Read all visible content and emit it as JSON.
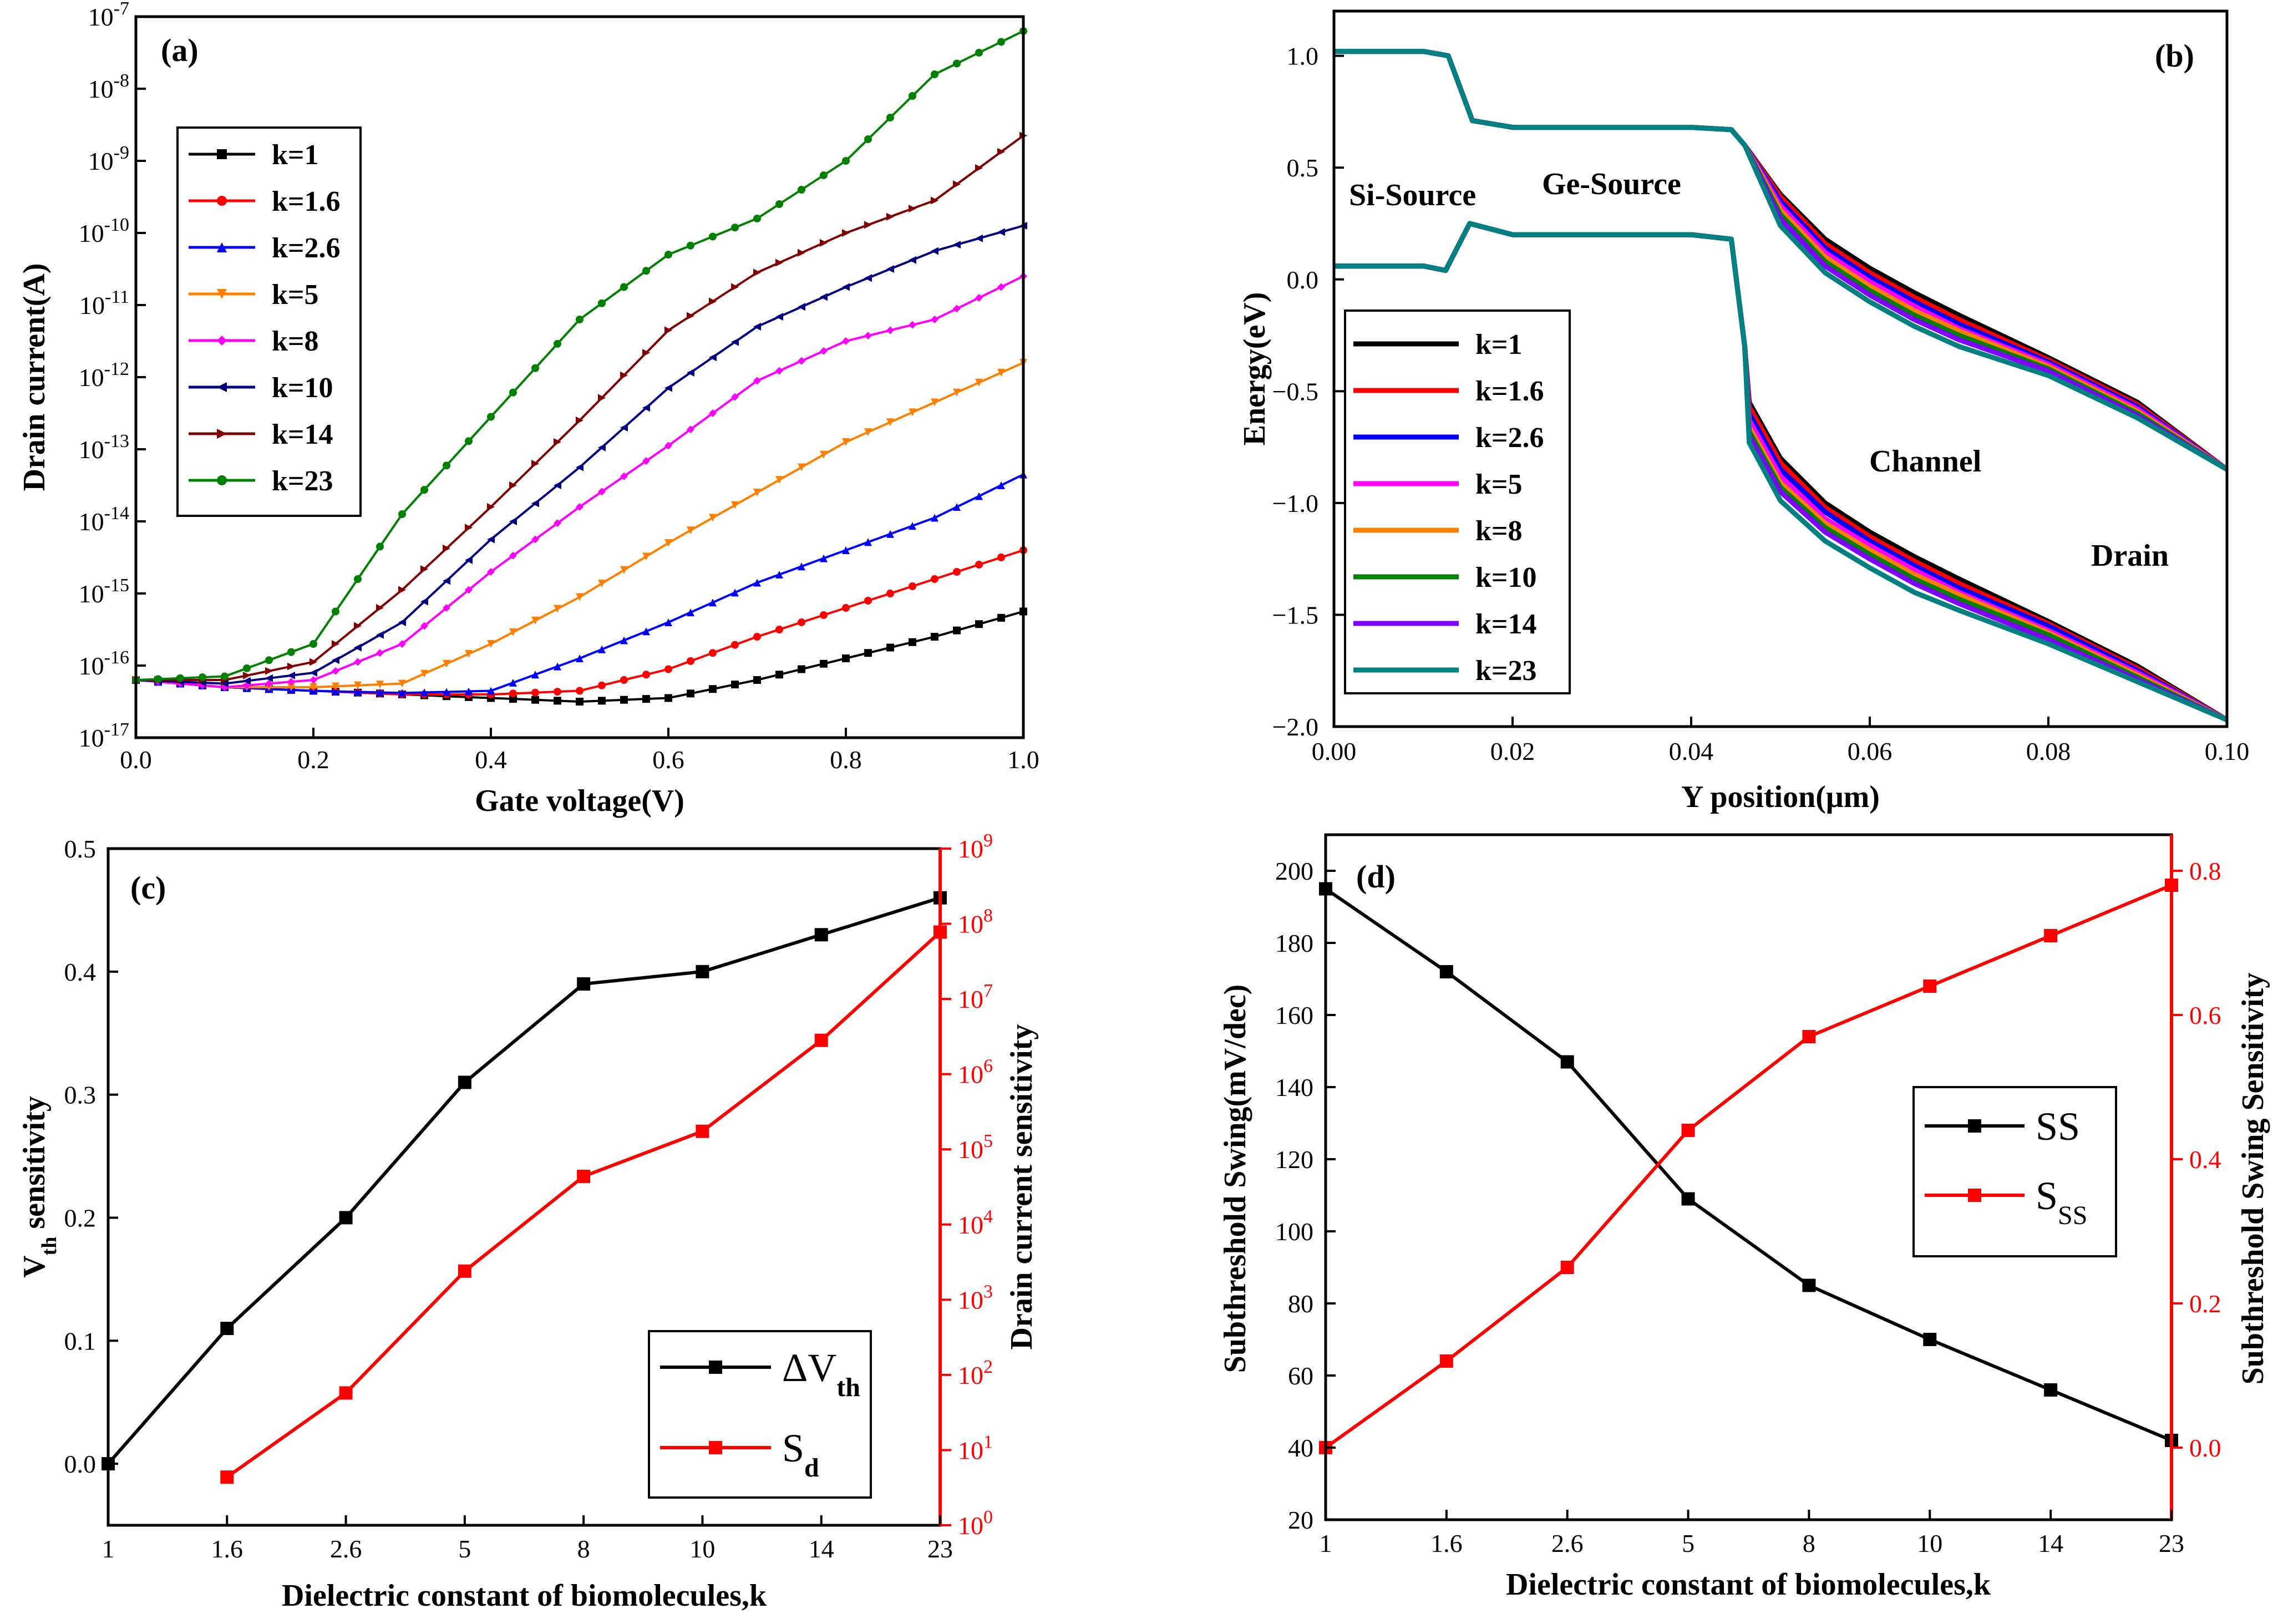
{
  "chart_data": [
    {
      "type": "line",
      "panel_label": "(a)",
      "xlabel": "Gate voltage(V)",
      "ylabel": "Drain current(A)",
      "xlim": [
        0,
        1.0
      ],
      "ylim_log10": [
        -17,
        -7
      ],
      "yscale": "log",
      "xticks": [
        "0.0",
        "0.2",
        "0.4",
        "0.6",
        "0.8",
        "1.0"
      ],
      "yticks": [
        {
          "base": "10",
          "exp": "-17"
        },
        {
          "base": "10",
          "exp": "-16"
        },
        {
          "base": "10",
          "exp": "-15"
        },
        {
          "base": "10",
          "exp": "-14"
        },
        {
          "base": "10",
          "exp": "-13"
        },
        {
          "base": "10",
          "exp": "-12"
        },
        {
          "base": "10",
          "exp": "-11"
        },
        {
          "base": "10",
          "exp": "-10"
        },
        {
          "base": "10",
          "exp": "-9"
        },
        {
          "base": "10",
          "exp": "-8"
        },
        {
          "base": "10",
          "exp": "-7"
        }
      ],
      "x": [
        0.0,
        0.1,
        0.2,
        0.3,
        0.4,
        0.5,
        0.6,
        0.7,
        0.8,
        0.9,
        1.0
      ],
      "series": [
        {
          "name": "k=1",
          "color": "#000000",
          "marker": "square",
          "log10_values": [
            -16.2,
            -16.3,
            -16.35,
            -16.4,
            -16.45,
            -16.5,
            -16.45,
            -16.2,
            -15.9,
            -15.6,
            -15.25
          ]
        },
        {
          "name": "k=1.6",
          "color": "#ff0000",
          "marker": "circle",
          "log10_values": [
            -16.2,
            -16.3,
            -16.35,
            -16.4,
            -16.4,
            -16.35,
            -16.05,
            -15.6,
            -15.2,
            -14.8,
            -14.4
          ]
        },
        {
          "name": "k=2.6",
          "color": "#0000ff",
          "marker": "triangle-up",
          "log10_values": [
            -16.2,
            -16.3,
            -16.35,
            -16.38,
            -16.35,
            -15.9,
            -15.4,
            -14.85,
            -14.4,
            -13.95,
            -13.35
          ]
        },
        {
          "name": "k=5",
          "color": "#ff8000",
          "marker": "triangle-down",
          "log10_values": [
            -16.2,
            -16.3,
            -16.3,
            -16.25,
            -15.7,
            -15.05,
            -14.3,
            -13.6,
            -12.9,
            -12.35,
            -11.8
          ]
        },
        {
          "name": "k=8",
          "color": "#ff00ff",
          "marker": "diamond",
          "log10_values": [
            -16.2,
            -16.3,
            -16.2,
            -15.7,
            -14.7,
            -13.8,
            -12.95,
            -12.05,
            -11.5,
            -11.2,
            -10.6
          ]
        },
        {
          "name": "k=10",
          "color": "#000080",
          "marker": "triangle-left",
          "log10_values": [
            -16.2,
            -16.25,
            -16.1,
            -15.4,
            -14.25,
            -13.25,
            -12.15,
            -11.3,
            -10.75,
            -10.25,
            -9.9
          ]
        },
        {
          "name": "k=14",
          "color": "#800000",
          "marker": "triangle-right",
          "log10_values": [
            -16.2,
            -16.2,
            -15.95,
            -14.95,
            -13.8,
            -12.6,
            -11.35,
            -10.55,
            -10.0,
            -9.55,
            -8.65
          ]
        },
        {
          "name": "k=23",
          "color": "#008000",
          "marker": "circle",
          "log10_values": [
            -16.2,
            -16.15,
            -15.7,
            -13.9,
            -12.55,
            -11.2,
            -10.3,
            -9.8,
            -9.0,
            -7.8,
            -7.2
          ]
        }
      ]
    },
    {
      "type": "line",
      "panel_label": "(b)",
      "xlabel": "Y position(μm)",
      "ylabel": "Energy(eV)",
      "xlim": [
        0,
        0.1
      ],
      "ylim": [
        -2.0,
        1.2
      ],
      "xticks": [
        "0.00",
        "0.02",
        "0.04",
        "0.06",
        "0.08",
        "0.10"
      ],
      "yticks": [
        "-2.0",
        "-1.5",
        "-1.0",
        "-0.5",
        "0.0",
        "0.5",
        "1.0"
      ],
      "annotations": [
        "Si-Source",
        "Ge-Source",
        "Channel",
        "Drain"
      ],
      "conduction_band_common": {
        "x": [
          0.0,
          0.01,
          0.0128,
          0.0155,
          0.02,
          0.03,
          0.04,
          0.0445,
          0.046
        ],
        "y": [
          1.02,
          1.02,
          1.0,
          0.71,
          0.68,
          0.68,
          0.68,
          0.67,
          0.6
        ]
      },
      "valence_band_common": {
        "x": [
          0.0,
          0.01,
          0.0125,
          0.0152,
          0.02,
          0.03,
          0.04,
          0.0445,
          0.046
        ],
        "y": [
          0.06,
          0.06,
          0.04,
          0.25,
          0.2,
          0.2,
          0.2,
          0.18,
          -0.3
        ]
      },
      "series": [
        {
          "name": "k=1",
          "color": "#000000",
          "cb_x": [
            0.046,
            0.05,
            0.055,
            0.06,
            0.065,
            0.07,
            0.08,
            0.09,
            0.1
          ],
          "cb_y": [
            0.6,
            0.38,
            0.18,
            0.05,
            -0.06,
            -0.16,
            -0.35,
            -0.55,
            -0.85
          ],
          "vb_x": [
            0.0465,
            0.05,
            0.055,
            0.06,
            0.065,
            0.07,
            0.08,
            0.09,
            0.1
          ],
          "vb_y": [
            -0.55,
            -0.8,
            -1.0,
            -1.13,
            -1.24,
            -1.34,
            -1.53,
            -1.73,
            -1.97
          ]
        },
        {
          "name": "k=1.6",
          "color": "#ff0000",
          "cb_x": [
            0.046,
            0.05,
            0.055,
            0.06,
            0.065,
            0.07,
            0.08,
            0.09,
            0.1
          ],
          "cb_y": [
            0.6,
            0.37,
            0.16,
            0.03,
            -0.08,
            -0.18,
            -0.36,
            -0.56,
            -0.85
          ],
          "vb_x": [
            0.0465,
            0.05,
            0.055,
            0.06,
            0.065,
            0.07,
            0.08,
            0.09,
            0.1
          ],
          "vb_y": [
            -0.57,
            -0.82,
            -1.02,
            -1.15,
            -1.26,
            -1.36,
            -1.54,
            -1.74,
            -1.97
          ]
        },
        {
          "name": "k=2.6",
          "color": "#0000ff",
          "cb_x": [
            0.046,
            0.05,
            0.055,
            0.06,
            0.065,
            0.07,
            0.08,
            0.09,
            0.1
          ],
          "cb_y": [
            0.6,
            0.35,
            0.14,
            0.01,
            -0.1,
            -0.2,
            -0.37,
            -0.57,
            -0.85
          ],
          "vb_x": [
            0.0465,
            0.05,
            0.055,
            0.06,
            0.065,
            0.07,
            0.08,
            0.09,
            0.1
          ],
          "vb_y": [
            -0.6,
            -0.85,
            -1.04,
            -1.17,
            -1.28,
            -1.38,
            -1.55,
            -1.75,
            -1.97
          ]
        },
        {
          "name": "k=5",
          "color": "#ff00ff",
          "cb_x": [
            0.046,
            0.05,
            0.055,
            0.06,
            0.065,
            0.07,
            0.08,
            0.09,
            0.1
          ],
          "cb_y": [
            0.6,
            0.33,
            0.12,
            -0.01,
            -0.12,
            -0.22,
            -0.38,
            -0.58,
            -0.85
          ],
          "vb_x": [
            0.0465,
            0.05,
            0.055,
            0.06,
            0.065,
            0.07,
            0.08,
            0.09,
            0.1
          ],
          "vb_y": [
            -0.63,
            -0.88,
            -1.07,
            -1.19,
            -1.3,
            -1.4,
            -1.57,
            -1.76,
            -1.97
          ]
        },
        {
          "name": "k=8",
          "color": "#ff8000",
          "cb_x": [
            0.046,
            0.05,
            0.055,
            0.06,
            0.065,
            0.07,
            0.08,
            0.09,
            0.1
          ],
          "cb_y": [
            0.6,
            0.31,
            0.1,
            -0.03,
            -0.14,
            -0.23,
            -0.39,
            -0.59,
            -0.85
          ],
          "vb_x": [
            0.0465,
            0.05,
            0.055,
            0.06,
            0.065,
            0.07,
            0.08,
            0.09,
            0.1
          ],
          "vb_y": [
            -0.66,
            -0.91,
            -1.09,
            -1.21,
            -1.32,
            -1.41,
            -1.58,
            -1.77,
            -1.97
          ]
        },
        {
          "name": "k=10",
          "color": "#008000",
          "cb_x": [
            0.046,
            0.05,
            0.055,
            0.06,
            0.065,
            0.07,
            0.08,
            0.09,
            0.1
          ],
          "cb_y": [
            0.6,
            0.29,
            0.08,
            -0.05,
            -0.16,
            -0.25,
            -0.4,
            -0.6,
            -0.85
          ],
          "vb_x": [
            0.0465,
            0.05,
            0.055,
            0.06,
            0.065,
            0.07,
            0.08,
            0.09,
            0.1
          ],
          "vb_y": [
            -0.68,
            -0.93,
            -1.11,
            -1.23,
            -1.34,
            -1.43,
            -1.59,
            -1.78,
            -1.97
          ]
        },
        {
          "name": "k=14",
          "color": "#8000ff",
          "cb_x": [
            0.046,
            0.05,
            0.055,
            0.06,
            0.065,
            0.07,
            0.08,
            0.09,
            0.1
          ],
          "cb_y": [
            0.6,
            0.27,
            0.06,
            -0.07,
            -0.18,
            -0.27,
            -0.41,
            -0.61,
            -0.85
          ],
          "vb_x": [
            0.0465,
            0.05,
            0.055,
            0.06,
            0.065,
            0.07,
            0.08,
            0.09,
            0.1
          ],
          "vb_y": [
            -0.7,
            -0.95,
            -1.13,
            -1.25,
            -1.36,
            -1.45,
            -1.61,
            -1.79,
            -1.97
          ]
        },
        {
          "name": "k=23",
          "color": "#008080",
          "cb_x": [
            0.046,
            0.05,
            0.055,
            0.06,
            0.065,
            0.07,
            0.08,
            0.09,
            0.1
          ],
          "cb_y": [
            0.6,
            0.24,
            0.03,
            -0.1,
            -0.21,
            -0.3,
            -0.43,
            -0.62,
            -0.85
          ],
          "vb_x": [
            0.0465,
            0.05,
            0.055,
            0.06,
            0.065,
            0.07,
            0.08,
            0.09,
            0.1
          ],
          "vb_y": [
            -0.73,
            -0.99,
            -1.17,
            -1.29,
            -1.4,
            -1.48,
            -1.63,
            -1.8,
            -1.97
          ]
        }
      ]
    },
    {
      "type": "line",
      "panel_label": "(c)",
      "xlabel": "Dielectric constant of biomolecules,k",
      "ylabel": {
        "main": "V",
        "sub": "th",
        "rest": " sensitivity"
      },
      "ylabel_right": "Drain current sensitivity",
      "categories": [
        "1",
        "1.6",
        "2.6",
        "5",
        "8",
        "10",
        "14",
        "23"
      ],
      "ylim": [
        -0.05,
        0.5
      ],
      "yticks": [
        "0.0",
        "0.1",
        "0.2",
        "0.3",
        "0.4",
        "0.5"
      ],
      "ylim_right_log10": [
        0,
        9
      ],
      "yticks_right": [
        {
          "base": "10",
          "exp": "0"
        },
        {
          "base": "10",
          "exp": "1"
        },
        {
          "base": "10",
          "exp": "2"
        },
        {
          "base": "10",
          "exp": "3"
        },
        {
          "base": "10",
          "exp": "4"
        },
        {
          "base": "10",
          "exp": "5"
        },
        {
          "base": "10",
          "exp": "6"
        },
        {
          "base": "10",
          "exp": "7"
        },
        {
          "base": "10",
          "exp": "8"
        },
        {
          "base": "10",
          "exp": "9"
        }
      ],
      "series": [
        {
          "name": {
            "main": "ΔV",
            "sub": "th"
          },
          "color": "#000000",
          "axis": "left",
          "values": [
            0.0,
            0.11,
            0.2,
            0.31,
            0.39,
            0.4,
            0.43,
            0.46
          ]
        },
        {
          "name": {
            "main": "S",
            "sub": "d"
          },
          "color": "#ff0000",
          "axis": "right",
          "log10_values": [
            null,
            0.64,
            1.76,
            3.38,
            4.64,
            5.24,
            6.45,
            7.89
          ]
        }
      ]
    },
    {
      "type": "line",
      "panel_label": "(d)",
      "xlabel": "Dielectric constant of biomolecules,k",
      "ylabel": "Subthreshold Swing(mV/dec)",
      "ylabel_right": "Subthreshold Swing Sensitivity",
      "categories": [
        "1",
        "1.6",
        "2.6",
        "5",
        "8",
        "10",
        "14",
        "23"
      ],
      "ylim": [
        20,
        210
      ],
      "yticks": [
        "20",
        "40",
        "60",
        "80",
        "100",
        "120",
        "140",
        "160",
        "180",
        "200"
      ],
      "ylim_right": [
        -0.1,
        0.85
      ],
      "yticks_right": [
        "0.0",
        "0.2",
        "0.4",
        "0.6",
        "0.8"
      ],
      "series": [
        {
          "name": {
            "main": "SS",
            "sub": ""
          },
          "color": "#000000",
          "axis": "left",
          "values": [
            195,
            172,
            147,
            109,
            85,
            70,
            56,
            42
          ]
        },
        {
          "name": {
            "main": "S",
            "sub": "SS"
          },
          "color": "#ff0000",
          "axis": "right",
          "values": [
            0.0,
            0.12,
            0.25,
            0.44,
            0.57,
            0.64,
            0.71,
            0.78
          ]
        }
      ]
    }
  ]
}
